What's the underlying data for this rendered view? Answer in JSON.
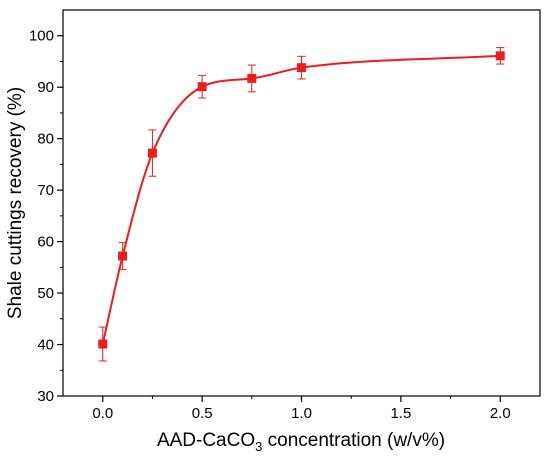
{
  "colors": {
    "series": "#ee1c1c",
    "axis": "#000000"
  },
  "chart_data": {
    "type": "scatter",
    "title": "",
    "xlabel_parts": {
      "pre": "AAD-CaCO",
      "sub": "3",
      "post": " concentration (w/v%)"
    },
    "ylabel": "Shale cuttings recovery (%)",
    "xlim": [
      -0.2,
      2.2
    ],
    "ylim": [
      30,
      105
    ],
    "x_ticks": [
      "0.0",
      "0.5",
      "1.0",
      "1.5",
      "2.0"
    ],
    "y_ticks": [
      "30",
      "40",
      "50",
      "60",
      "70",
      "80",
      "90",
      "100"
    ],
    "grid": false,
    "legend": "none",
    "series": [
      {
        "marker": "square",
        "x": [
          0.0,
          0.1,
          0.25,
          0.5,
          0.75,
          1.0,
          2.0
        ],
        "y": [
          40.1,
          57.2,
          77.2,
          90.1,
          91.7,
          93.8,
          96.1
        ],
        "err": [
          3.3,
          2.6,
          4.5,
          2.2,
          2.6,
          2.2,
          1.6
        ],
        "fit": "smooth"
      }
    ]
  }
}
